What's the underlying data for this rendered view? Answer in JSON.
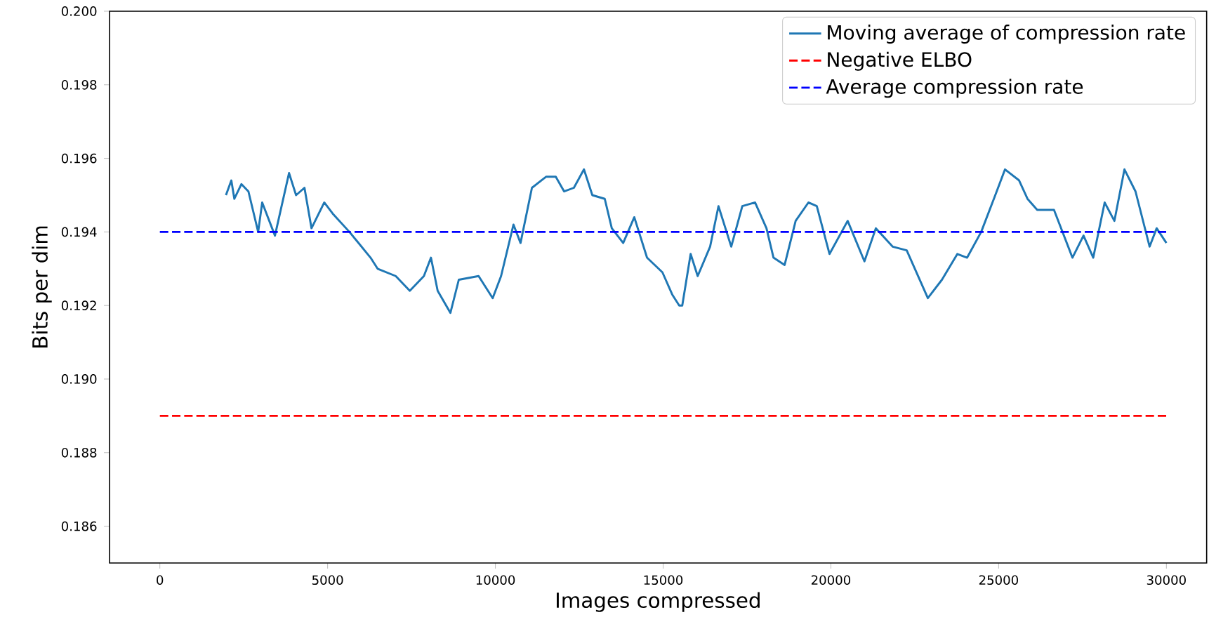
{
  "chart_data": {
    "type": "line",
    "xlabel": "Images compressed",
    "ylabel": "Bits per dim",
    "xlim": [
      -1500,
      31200
    ],
    "ylim": [
      0.185,
      0.2
    ],
    "xticks": [
      0,
      5000,
      10000,
      15000,
      20000,
      25000,
      30000
    ],
    "yticks": [
      0.186,
      0.188,
      {
        "value": 0.19,
        "label": "0.190"
      },
      0.192,
      0.194,
      0.196,
      0.198,
      {
        "value": 0.2,
        "label": "0.200"
      }
    ],
    "legend": "top right",
    "grid": false,
    "series": [
      {
        "name": "Moving average of compression rate",
        "color": "#1f77b4",
        "line_style": "solid",
        "x": [
          1970,
          2130,
          2220,
          2430,
          2640,
          2930,
          3050,
          3430,
          3850,
          4060,
          4310,
          4520,
          4900,
          5150,
          5650,
          6280,
          6490,
          7030,
          7450,
          7870,
          8080,
          8280,
          8660,
          8910,
          9500,
          9920,
          10170,
          10540,
          10750,
          11090,
          11510,
          11800,
          12050,
          12340,
          12640,
          12890,
          13260,
          13470,
          13810,
          14140,
          14520,
          14980,
          15270,
          15480,
          15570,
          15820,
          16030,
          16400,
          16650,
          17030,
          17360,
          17740,
          18080,
          18290,
          18620,
          18950,
          19330,
          19580,
          19960,
          20500,
          21000,
          21340,
          21840,
          22260,
          22890,
          23310,
          23770,
          24060,
          24480,
          24900,
          25190,
          25610,
          25860,
          26150,
          26650,
          27200,
          27530,
          27820,
          28160,
          28450,
          28750,
          29080,
          29500,
          29710,
          30000
        ],
        "values": [
          0.195,
          0.1954,
          0.1949,
          0.1953,
          0.1951,
          0.194,
          0.1948,
          0.1939,
          0.1956,
          0.195,
          0.1952,
          0.1941,
          0.1948,
          0.1945,
          0.194,
          0.1933,
          0.193,
          0.1928,
          0.1924,
          0.1928,
          0.1933,
          0.1924,
          0.1918,
          0.1927,
          0.1928,
          0.1922,
          0.1928,
          0.1942,
          0.1937,
          0.1952,
          0.1955,
          0.1955,
          0.1951,
          0.1952,
          0.1957,
          0.195,
          0.1949,
          0.1941,
          0.1937,
          0.1944,
          0.1933,
          0.1929,
          0.1923,
          0.192,
          0.192,
          0.1934,
          0.1928,
          0.1936,
          0.1947,
          0.1936,
          0.1947,
          0.1948,
          0.1941,
          0.1933,
          0.1931,
          0.1943,
          0.1948,
          0.1947,
          0.1934,
          0.1943,
          0.1932,
          0.1941,
          0.1936,
          0.1935,
          0.1922,
          0.1927,
          0.1934,
          0.1933,
          0.194,
          0.195,
          0.1957,
          0.1954,
          0.1949,
          0.1946,
          0.1946,
          0.1933,
          0.1939,
          0.1933,
          0.1948,
          0.1943,
          0.1957,
          0.1951,
          0.1936,
          0.1941,
          0.1937
        ]
      },
      {
        "name": "Negative ELBO",
        "color": "#ff0000",
        "line_style": "dashed",
        "x": [
          0,
          30000
        ],
        "values": [
          0.189,
          0.189
        ]
      },
      {
        "name": "Average compression rate",
        "color": "#0000ff",
        "line_style": "dashed",
        "x": [
          0,
          30000
        ],
        "values": [
          0.194,
          0.194
        ]
      }
    ]
  }
}
